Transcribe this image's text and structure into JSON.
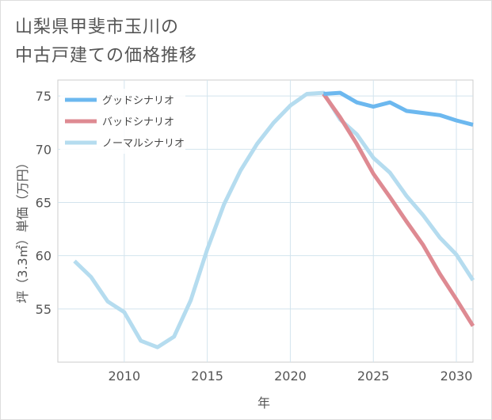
{
  "title": {
    "line1": "山梨県甲斐市玉川の",
    "line2": "中古戸建ての価格推移"
  },
  "chart_data": {
    "type": "line",
    "xlabel": "年",
    "ylabel": "坪（3.3㎡）単価（万円）",
    "xlim": [
      2006,
      2031
    ],
    "ylim": [
      50,
      76.5
    ],
    "x_ticks": [
      2010,
      2015,
      2020,
      2025,
      2030
    ],
    "y_ticks": [
      55,
      60,
      65,
      70,
      75
    ],
    "grid": true,
    "legend_position": "top-left",
    "series": [
      {
        "name": "グッドシナリオ",
        "color": "#6cb8ef",
        "x": [
          2022,
          2023,
          2024,
          2025,
          2026,
          2027,
          2028,
          2029,
          2030,
          2031
        ],
        "values": [
          75.2,
          75.3,
          74.4,
          74.0,
          74.4,
          73.6,
          73.4,
          73.2,
          72.7,
          72.3
        ]
      },
      {
        "name": "バッドシナリオ",
        "color": "#de8a92",
        "x": [
          2022,
          2023,
          2024,
          2025,
          2026,
          2027,
          2028,
          2029,
          2030,
          2031
        ],
        "values": [
          75.2,
          73.0,
          70.5,
          67.7,
          65.5,
          63.2,
          61.0,
          58.3,
          55.9,
          53.4
        ]
      },
      {
        "name": "ノーマルシナリオ",
        "color": "#b5dcef",
        "x": [
          2007,
          2008,
          2009,
          2010,
          2011,
          2012,
          2013,
          2014,
          2015,
          2016,
          2017,
          2018,
          2019,
          2020,
          2021,
          2022,
          2023,
          2024,
          2025,
          2026,
          2027,
          2028,
          2029,
          2030,
          2031
        ],
        "values": [
          59.5,
          58.0,
          55.7,
          54.7,
          52.0,
          51.4,
          52.4,
          55.8,
          60.6,
          64.8,
          68.0,
          70.5,
          72.5,
          74.1,
          75.2,
          75.3,
          72.8,
          71.4,
          69.2,
          67.8,
          65.6,
          63.8,
          61.7,
          60.1,
          57.7
        ]
      }
    ]
  }
}
